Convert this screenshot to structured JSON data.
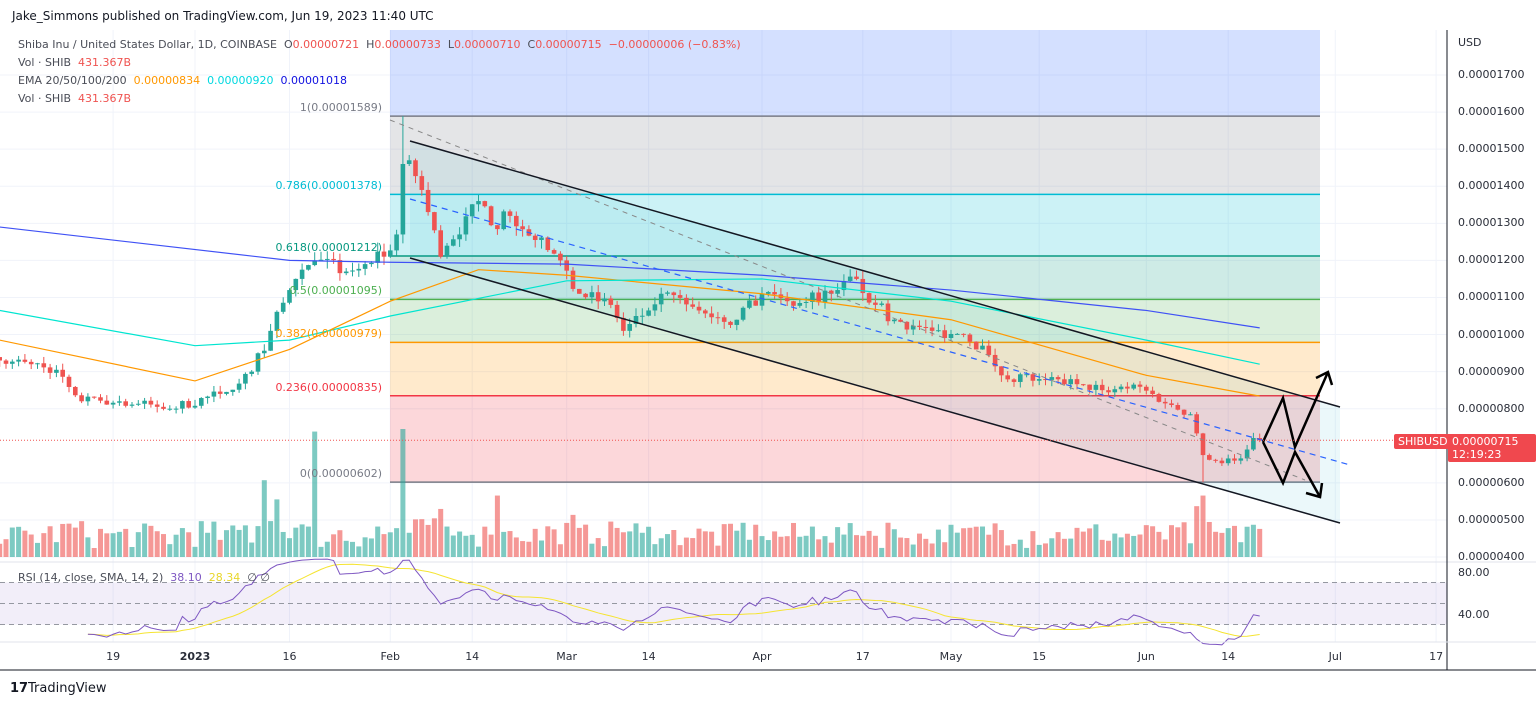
{
  "publisher_line": "Jake_Simmons published on TradingView.com, Jun 19, 2023 11:40 UTC",
  "legend": {
    "symbol": "Shiba Inu / United States Dollar, 1D, COINBASE",
    "o_label": "O",
    "o": "0.00000721",
    "h_label": "H",
    "h": "0.00000733",
    "l_label": "L",
    "l": "0.00000710",
    "c_label": "C",
    "c": "0.00000715",
    "change": "−0.00000006 (−0.83%)",
    "vol_label": "Vol · SHIB",
    "vol_value": "431.367B",
    "ema_label": "EMA 20/50/100/200",
    "ema20": "0.00000834",
    "ema50": "0.00000920",
    "ema100": "0.00001018",
    "vol2_label": "Vol · SHIB",
    "vol2_value": "431.367B"
  },
  "rsi_legend": {
    "label": "RSI (14, close, SMA, 14, 2)",
    "rsi": "38.10",
    "sma": "28.34",
    "empty1": "∅",
    "empty2": "∅"
  },
  "price_axis": {
    "currency": "USD",
    "ticks": [
      "0.00001700",
      "0.00001600",
      "0.00001500",
      "0.00001400",
      "0.00001300",
      "0.00001200",
      "0.00001100",
      "0.00001000",
      "0.00000900",
      "0.00000800",
      "0.00000600",
      "0.00000500",
      "0.00000400"
    ],
    "last_price": "0.00000715",
    "countdown": "12:19:23",
    "symbol_tag": "SHIBUSD"
  },
  "rsi_axis": {
    "ticks": [
      "80.00",
      "40.00"
    ]
  },
  "time_axis": [
    {
      "label": "19",
      "date": "2022-12-19"
    },
    {
      "label": "2023",
      "date": "2023-01-01"
    },
    {
      "label": "16",
      "date": "2023-01-16"
    },
    {
      "label": "Feb",
      "date": "2023-02-01"
    },
    {
      "label": "14",
      "date": "2023-02-14"
    },
    {
      "label": "Mar",
      "date": "2023-03-01"
    },
    {
      "label": "14",
      "date": "2023-03-14"
    },
    {
      "label": "Apr",
      "date": "2023-04-01"
    },
    {
      "label": "17",
      "date": "2023-04-17"
    },
    {
      "label": "May",
      "date": "2023-05-01"
    },
    {
      "label": "15",
      "date": "2023-05-15"
    },
    {
      "label": "Jun",
      "date": "2023-06-01"
    },
    {
      "label": "14",
      "date": "2023-06-14"
    },
    {
      "label": "Jul",
      "date": "2023-07-01"
    },
    {
      "label": "17",
      "date": "2023-07-17"
    }
  ],
  "fib_levels": [
    {
      "label": "1(0.00001589)",
      "level": 1,
      "price": 1.589e-05,
      "color": "#787b86"
    },
    {
      "label": "0.786(0.00001378)",
      "level": 0.786,
      "price": 1.378e-05,
      "color": "#00bcd4"
    },
    {
      "label": "0.618(0.00001212)",
      "level": 0.618,
      "price": 1.212e-05,
      "color": "#089981"
    },
    {
      "label": "0.5(0.00001095)",
      "level": 0.5,
      "price": 1.095e-05,
      "color": "#4caf50"
    },
    {
      "label": "0.382(0.00000979)",
      "level": 0.382,
      "price": 9.79e-06,
      "color": "#ff9800"
    },
    {
      "label": "0.236(0.00000835)",
      "level": 0.236,
      "price": 8.35e-06,
      "color": "#f23645"
    },
    {
      "label": "0(0.00000602)",
      "level": 0,
      "price": 6.02e-06,
      "color": "#787b86"
    }
  ],
  "colors": {
    "up": "#26a69a",
    "down": "#ef5350",
    "ema20": "#ff9800",
    "ema50": "#00e5d0",
    "ema100": "#3f51f5",
    "rsi": "#7e57c2",
    "rsi_sma": "#f5e431"
  },
  "chart_data": {
    "type": "candlestick",
    "symbol": "SHIBUSD",
    "interval": "1D",
    "ylim": [
      4e-06,
      1.75e-05
    ],
    "closes": [
      [
        "2022-12-01",
        9.3e-06
      ],
      [
        "2022-12-06",
        9.2e-06
      ],
      [
        "2022-12-10",
        9.05e-06
      ],
      [
        "2022-12-14",
        8.2e-06
      ],
      [
        "2022-12-20",
        8.2e-06
      ],
      [
        "2022-12-28",
        8e-06
      ],
      [
        "2023-01-05",
        8.4e-06
      ],
      [
        "2023-01-10",
        9e-06
      ],
      [
        "2023-01-13",
        1.01e-05
      ],
      [
        "2023-01-16",
        1.12e-05
      ],
      [
        "2023-01-18",
        1.175e-05
      ],
      [
        "2023-01-20",
        1.2e-05
      ],
      [
        "2023-01-25",
        1.17e-05
      ],
      [
        "2023-01-28",
        1.19e-05
      ],
      [
        "2023-01-31",
        1.21e-05
      ],
      [
        "2023-02-02",
        1.27e-05
      ],
      [
        "2023-02-03",
        1.46e-05
      ],
      [
        "2023-02-04",
        1.47e-05
      ],
      [
        "2023-02-06",
        1.39e-05
      ],
      [
        "2023-02-09",
        1.21e-05
      ],
      [
        "2023-02-12",
        1.27e-05
      ],
      [
        "2023-02-15",
        1.36e-05
      ],
      [
        "2023-02-17",
        1.295e-05
      ],
      [
        "2023-02-20",
        1.32e-05
      ],
      [
        "2023-02-24",
        1.255e-05
      ],
      [
        "2023-02-28",
        1.2e-05
      ],
      [
        "2023-03-03",
        1.11e-05
      ],
      [
        "2023-03-08",
        1.08e-05
      ],
      [
        "2023-03-10",
        1.01e-05
      ],
      [
        "2023-03-14",
        1.065e-05
      ],
      [
        "2023-03-16",
        1.11e-05
      ],
      [
        "2023-03-22",
        1.065e-05
      ],
      [
        "2023-03-28",
        1.04e-05
      ],
      [
        "2023-04-01",
        1.11e-05
      ],
      [
        "2023-04-05",
        1.09e-05
      ],
      [
        "2023-04-12",
        1.11e-05
      ],
      [
        "2023-04-16",
        1.15e-05
      ],
      [
        "2023-04-19",
        1.08e-05
      ],
      [
        "2023-04-22",
        1.04e-05
      ],
      [
        "2023-04-28",
        1.01e-05
      ],
      [
        "2023-05-03",
        1e-05
      ],
      [
        "2023-05-07",
        9.45e-06
      ],
      [
        "2023-05-09",
        8.9e-06
      ],
      [
        "2023-05-15",
        8.8e-06
      ],
      [
        "2023-05-22",
        8.65e-06
      ],
      [
        "2023-05-25",
        8.5e-06
      ],
      [
        "2023-05-30",
        8.65e-06
      ],
      [
        "2023-06-05",
        8.1e-06
      ],
      [
        "2023-06-08",
        7.85e-06
      ],
      [
        "2023-06-10",
        6.75e-06
      ],
      [
        "2023-06-12",
        6.6e-06
      ],
      [
        "2023-06-15",
        6.6e-06
      ],
      [
        "2023-06-17",
        6.9e-06
      ],
      [
        "2023-06-18",
        7.21e-06
      ],
      [
        "2023-06-19",
        7.15e-06
      ]
    ],
    "extremes": [
      {
        "date": "2023-02-03",
        "high": 1.589e-05
      },
      {
        "date": "2023-06-10",
        "low": 6.02e-06
      }
    ],
    "last_candle": {
      "date": "2023-06-19",
      "open": 7.21e-06,
      "high": 7.33e-06,
      "low": 7.1e-06,
      "close": 7.15e-06
    },
    "ema20": [
      [
        "2022-12-01",
        9.85e-06
      ],
      [
        "2023-01-01",
        8.75e-06
      ],
      [
        "2023-01-16",
        9.6e-06
      ],
      [
        "2023-02-01",
        1.09e-05
      ],
      [
        "2023-02-15",
        1.175e-05
      ],
      [
        "2023-03-01",
        1.16e-05
      ],
      [
        "2023-04-01",
        1.11e-05
      ],
      [
        "2023-05-01",
        1.04e-05
      ],
      [
        "2023-06-01",
        8.9e-06
      ],
      [
        "2023-06-19",
        8.34e-06
      ]
    ],
    "ema50": [
      [
        "2022-12-01",
        1.065e-05
      ],
      [
        "2023-01-01",
        9.7e-06
      ],
      [
        "2023-01-16",
        9.85e-06
      ],
      [
        "2023-02-01",
        1.05e-05
      ],
      [
        "2023-03-01",
        1.145e-05
      ],
      [
        "2023-04-01",
        1.15e-05
      ],
      [
        "2023-05-01",
        1.09e-05
      ],
      [
        "2023-06-01",
        9.85e-06
      ],
      [
        "2023-06-19",
        9.2e-06
      ]
    ],
    "ema100": [
      [
        "2022-12-01",
        1.29e-05
      ],
      [
        "2023-01-16",
        1.2e-05
      ],
      [
        "2023-02-01",
        1.195e-05
      ],
      [
        "2023-03-01",
        1.19e-05
      ],
      [
        "2023-04-01",
        1.16e-05
      ],
      [
        "2023-05-01",
        1.12e-05
      ],
      [
        "2023-06-01",
        1.065e-05
      ],
      [
        "2023-06-19",
        1.018e-05
      ]
    ],
    "rsi": {
      "period": 14,
      "last": 38.1,
      "sma_last": 28.34,
      "bands": [
        70,
        50,
        30
      ],
      "ylim": [
        20,
        90
      ]
    }
  },
  "footer": {
    "brand": "TradingView"
  }
}
